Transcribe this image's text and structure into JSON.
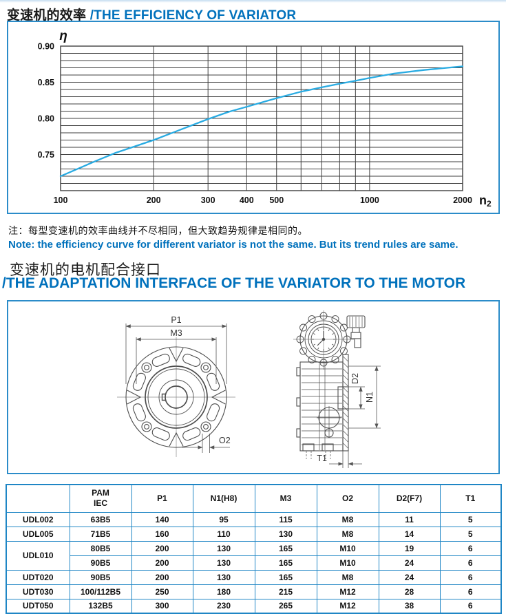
{
  "colors": {
    "accent_blue": "#0071BC",
    "box_border_blue": "#2b8cc9",
    "table_border_blue": "#1f86c5",
    "curve_cyan": "#29ABE2",
    "grid_gray": "#3f3f3f",
    "drawing_gray": "#4d4d4d"
  },
  "section_efficiency": {
    "title_cn": "变速机的效率",
    "title_en": "/THE EFFICIENCY OF VARIATOR",
    "note_cn": "注：每型变速机的效率曲线并不尽相同，但大致趋势规律是相同的。",
    "note_en": "Note: the efficiency curve for different variator is not the same. But its trend rules are same."
  },
  "chart_data": {
    "type": "line",
    "title": "",
    "xlabel_main": "n",
    "xlabel_sub": "2",
    "ylabel": "η",
    "x_scale": "log",
    "xlim": [
      100,
      2000
    ],
    "ylim": [
      0.7,
      0.9
    ],
    "grid": true,
    "legend_position": "none",
    "y_grid_step": 0.01,
    "x_gridlines": [
      100,
      200,
      300,
      400,
      500,
      600,
      700,
      800,
      900,
      1000,
      2000
    ],
    "x_tick_labels": [
      "100",
      "200",
      "300",
      "400",
      "500",
      "1000",
      "2000"
    ],
    "x_tick_values": [
      100,
      200,
      300,
      400,
      500,
      1000,
      2000
    ],
    "y_tick_labels": [
      "0.90",
      "0.85",
      "0.80",
      "0.75"
    ],
    "y_tick_values": [
      0.9,
      0.85,
      0.8,
      0.75
    ],
    "series": [
      {
        "name": "variator efficiency",
        "color": "#29ABE2",
        "points": [
          [
            100,
            0.72
          ],
          [
            130,
            0.741
          ],
          [
            150,
            0.752
          ],
          [
            200,
            0.77
          ],
          [
            250,
            0.786
          ],
          [
            300,
            0.799
          ],
          [
            350,
            0.809
          ],
          [
            400,
            0.816
          ],
          [
            500,
            0.828
          ],
          [
            600,
            0.837
          ],
          [
            700,
            0.843
          ],
          [
            800,
            0.848
          ],
          [
            900,
            0.852
          ],
          [
            1000,
            0.856
          ],
          [
            1200,
            0.862
          ],
          [
            1500,
            0.867
          ],
          [
            2000,
            0.872
          ]
        ]
      }
    ]
  },
  "section_adaptation": {
    "title_cn": "变速机的电机配合接口",
    "title_en": "/THE ADAPTATION INTERFACE OF THE VARIATOR TO THE MOTOR"
  },
  "drawing": {
    "labels": {
      "p1": "P1",
      "m3": "M3",
      "o2": "O2",
      "d2": "D2",
      "n1": "N1",
      "t1": "T1"
    }
  },
  "table": {
    "header": {
      "col_model": "",
      "pam_line1": "PAM",
      "pam_line2": "IEC",
      "cols": [
        "P1",
        "N1(H8)",
        "M3",
        "O2",
        "D2(F7)",
        "T1"
      ]
    },
    "rows": [
      {
        "model": "UDL002",
        "rowspan": 1,
        "pam": "63B5",
        "values": [
          "140",
          "95",
          "115",
          "M8",
          "11",
          "5"
        ]
      },
      {
        "model": "UDL005",
        "rowspan": 1,
        "pam": "71B5",
        "values": [
          "160",
          "110",
          "130",
          "M8",
          "14",
          "5"
        ]
      },
      {
        "model": "UDL010",
        "rowspan": 2,
        "pam": "80B5",
        "values": [
          "200",
          "130",
          "165",
          "M10",
          "19",
          "6"
        ]
      },
      {
        "model": null,
        "rowspan": 0,
        "pam": "90B5",
        "values": [
          "200",
          "130",
          "165",
          "M10",
          "24",
          "6"
        ]
      },
      {
        "model": "UDT020",
        "rowspan": 1,
        "pam": "90B5",
        "values": [
          "200",
          "130",
          "165",
          "M8",
          "24",
          "6"
        ]
      },
      {
        "model": "UDT030",
        "rowspan": 1,
        "pam": "100/112B5",
        "values": [
          "250",
          "180",
          "215",
          "M12",
          "28",
          "6"
        ]
      },
      {
        "model": "UDT050",
        "rowspan": 1,
        "pam": "132B5",
        "values": [
          "300",
          "230",
          "265",
          "M12",
          "38",
          "6"
        ]
      }
    ]
  }
}
